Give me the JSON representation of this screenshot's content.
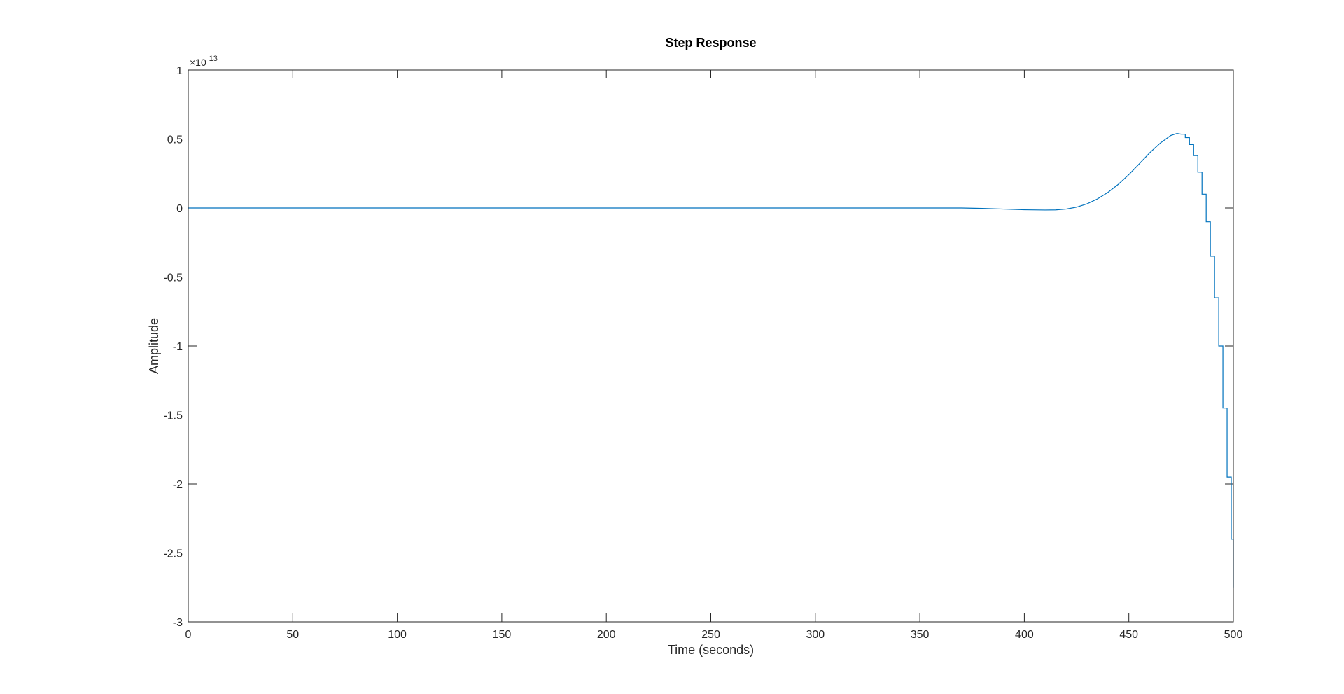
{
  "chart_data": {
    "type": "line",
    "title": "Step Response",
    "xlabel": "Time (seconds)",
    "ylabel": "Amplitude",
    "xlim": [
      0,
      500
    ],
    "ylim": [
      -3,
      1
    ],
    "xticks": [
      0,
      50,
      100,
      150,
      200,
      250,
      300,
      350,
      400,
      450,
      500
    ],
    "yticks": [
      -3,
      -2.5,
      -2,
      -1.5,
      -1,
      -0.5,
      0,
      0.5,
      1
    ],
    "x_tick_labels": [
      "0",
      "50",
      "100",
      "150",
      "200",
      "250",
      "300",
      "350",
      "400",
      "450",
      "500"
    ],
    "y_tick_labels": [
      "-3",
      "-2.5",
      "-2",
      "-1.5",
      "-1",
      "-0.5",
      "0",
      "0.5",
      "1"
    ],
    "y_exponent": {
      "prefix": "×10",
      "power": "13"
    },
    "grid": false,
    "line_color": "#0072BD",
    "series": [
      {
        "name": "",
        "x": [
          0,
          50,
          100,
          150,
          200,
          250,
          300,
          350,
          370,
          380,
          390,
          400,
          410,
          415,
          420,
          425,
          430,
          435,
          440,
          445,
          450,
          455,
          460,
          465,
          470,
          473,
          475,
          477,
          479,
          481,
          483,
          485,
          487,
          489,
          491,
          493,
          495,
          497,
          499,
          500
        ],
        "y": [
          0,
          0,
          0,
          0,
          0,
          0,
          0,
          0,
          0,
          -0.003,
          -0.008,
          -0.013,
          -0.015,
          -0.014,
          -0.008,
          0.006,
          0.03,
          0.066,
          0.113,
          0.172,
          0.242,
          0.32,
          0.4,
          0.47,
          0.525,
          0.54,
          0.535,
          0.51,
          0.46,
          0.38,
          0.26,
          0.1,
          -0.1,
          -0.35,
          -0.65,
          -1.0,
          -1.45,
          -1.95,
          -2.4,
          -2.75
        ]
      }
    ]
  }
}
